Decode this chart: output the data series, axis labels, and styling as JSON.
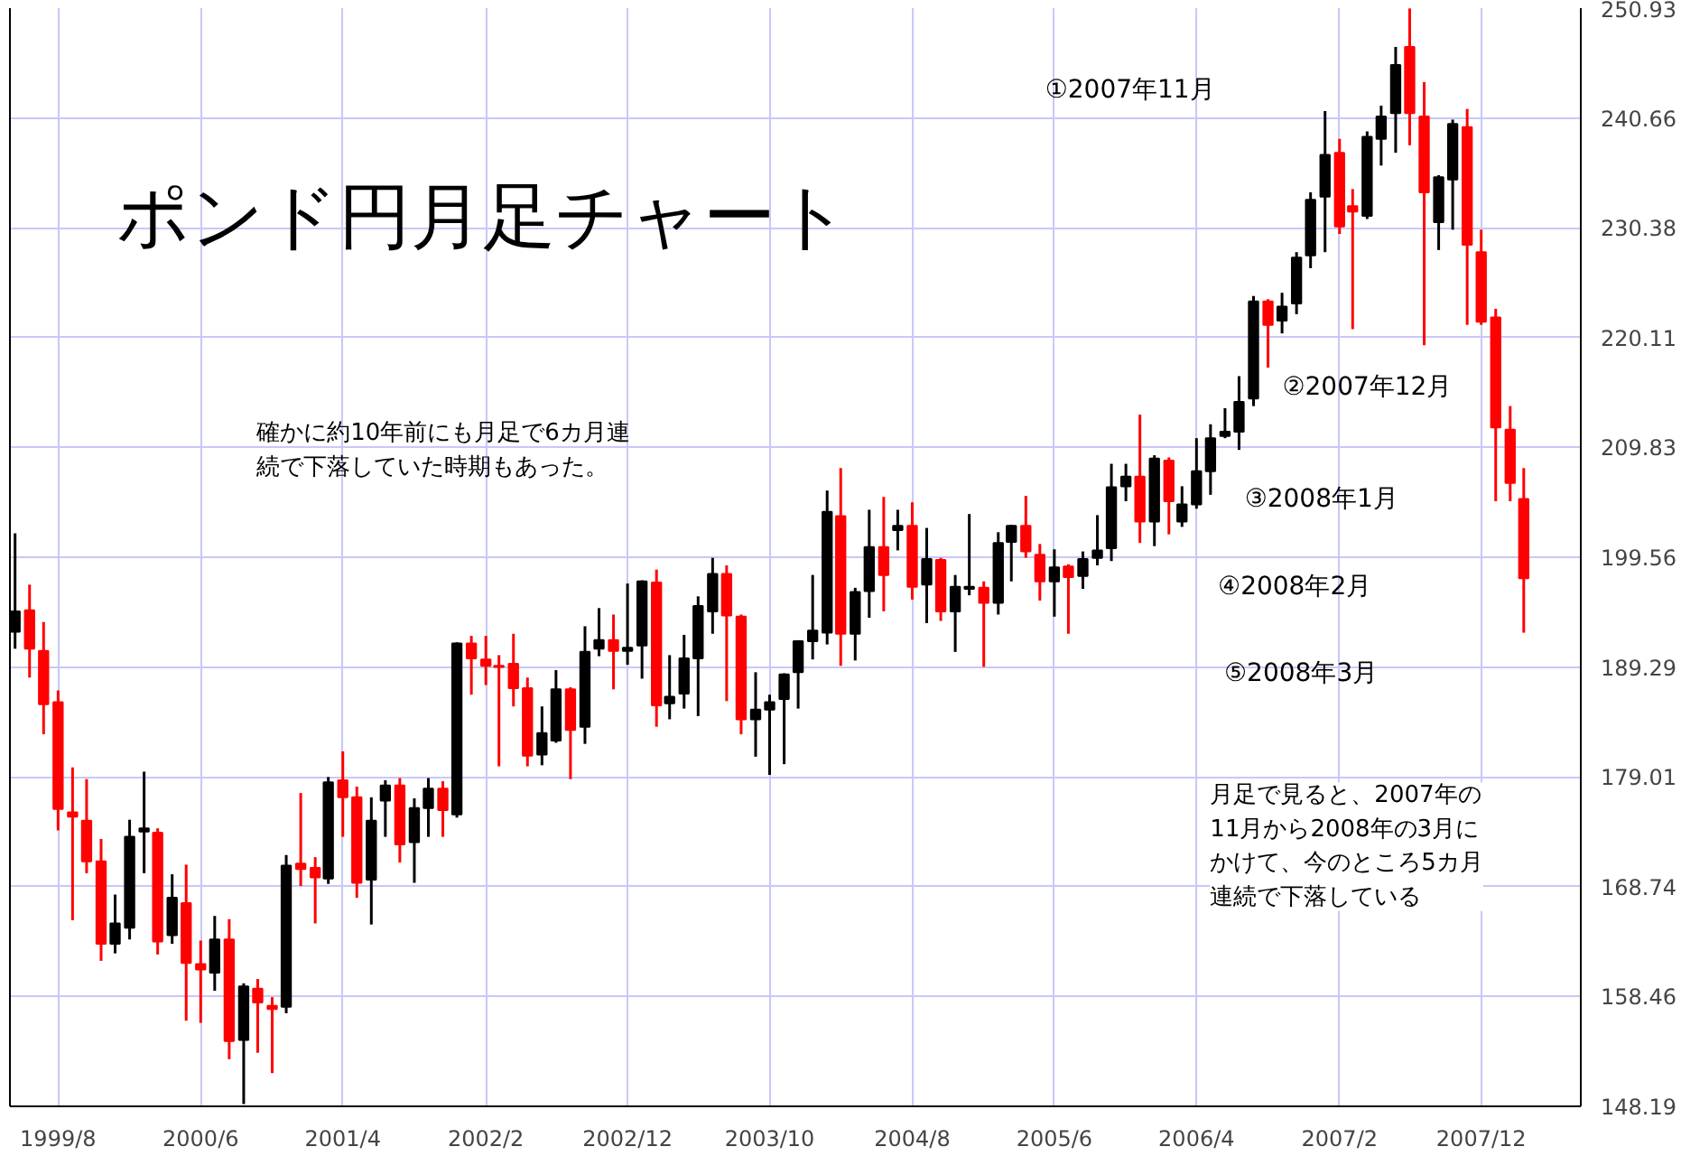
{
  "chart_data": {
    "type": "candlestick",
    "title": "ポンド円月足チャート",
    "x": [
      "1999-05",
      "1999-06",
      "1999-07",
      "1999-08",
      "1999-09",
      "1999-10",
      "1999-11",
      "1999-12",
      "2000-01",
      "2000-02",
      "2000-03",
      "2000-04",
      "2000-05",
      "2000-06",
      "2000-07",
      "2000-08",
      "2000-09",
      "2000-10",
      "2000-11",
      "2000-12",
      "2001-01",
      "2001-02",
      "2001-03",
      "2001-04",
      "2001-05",
      "2001-06",
      "2001-07",
      "2001-08",
      "2001-09",
      "2001-10",
      "2001-11",
      "2001-12",
      "2002-01",
      "2002-02",
      "2002-03",
      "2002-04",
      "2002-05",
      "2002-06",
      "2002-07",
      "2002-08",
      "2002-09",
      "2002-10",
      "2002-11",
      "2002-12",
      "2003-01",
      "2003-02",
      "2003-03",
      "2003-04",
      "2003-05",
      "2003-06",
      "2003-07",
      "2003-08",
      "2003-09",
      "2003-10",
      "2003-11",
      "2003-12",
      "2004-01",
      "2004-02",
      "2004-03",
      "2004-04",
      "2004-05",
      "2004-06",
      "2004-07",
      "2004-08",
      "2004-09",
      "2004-10",
      "2004-11",
      "2004-12",
      "2005-01",
      "2005-02",
      "2005-03",
      "2005-04",
      "2005-05",
      "2005-06",
      "2005-07",
      "2005-08",
      "2005-09",
      "2005-10",
      "2005-11",
      "2005-12",
      "2006-01",
      "2006-02",
      "2006-03",
      "2006-04",
      "2006-05",
      "2006-06",
      "2006-07",
      "2006-08",
      "2006-09",
      "2006-10",
      "2006-11",
      "2006-12",
      "2007-01",
      "2007-02",
      "2007-03",
      "2007-04",
      "2007-05",
      "2007-06",
      "2007-07",
      "2007-08",
      "2007-09",
      "2007-10",
      "2007-11",
      "2007-12",
      "2008-01",
      "2008-02",
      "2008-03"
    ],
    "ohlc": [
      [
        192.6,
        201.8,
        191.0,
        194.5
      ],
      [
        194.6,
        197.0,
        188.3,
        191.0
      ],
      [
        190.8,
        193.5,
        183.0,
        185.8
      ],
      [
        186.0,
        187.1,
        174.0,
        176.0
      ],
      [
        175.7,
        179.9,
        165.6,
        175.3
      ],
      [
        174.9,
        178.8,
        170.0,
        171.1
      ],
      [
        171.1,
        173.2,
        161.8,
        163.4
      ],
      [
        163.4,
        168.0,
        162.5,
        165.3
      ],
      [
        164.9,
        175.0,
        163.8,
        173.4
      ],
      [
        173.9,
        179.5,
        170.0,
        174.2
      ],
      [
        173.8,
        174.2,
        162.4,
        163.6
      ],
      [
        164.2,
        169.9,
        163.4,
        167.7
      ],
      [
        167.2,
        170.8,
        156.2,
        161.6
      ],
      [
        161.5,
        163.7,
        156.0,
        161.0
      ],
      [
        160.7,
        166.0,
        159.0,
        163.8
      ],
      [
        163.8,
        165.7,
        152.6,
        154.3
      ],
      [
        154.4,
        159.7,
        148.4,
        159.4
      ],
      [
        159.2,
        160.1,
        153.2,
        157.9
      ],
      [
        157.6,
        158.4,
        151.3,
        157.3
      ],
      [
        157.5,
        171.7,
        156.9,
        170.7
      ],
      [
        170.9,
        177.5,
        168.8,
        170.4
      ],
      [
        170.5,
        171.5,
        165.3,
        169.6
      ],
      [
        169.5,
        179.0,
        169.0,
        178.5
      ],
      [
        178.7,
        181.4,
        173.4,
        177.1
      ],
      [
        177.1,
        178.1,
        167.7,
        169.1
      ],
      [
        169.4,
        177.1,
        165.2,
        174.9
      ],
      [
        176.8,
        178.7,
        173.4,
        178.2
      ],
      [
        178.2,
        178.9,
        171.0,
        172.7
      ],
      [
        172.9,
        177.0,
        169.1,
        176.1
      ],
      [
        176.1,
        178.9,
        173.4,
        177.9
      ],
      [
        177.9,
        178.6,
        173.4,
        175.9
      ],
      [
        175.5,
        191.6,
        175.2,
        191.5
      ],
      [
        191.5,
        192.2,
        186.7,
        190.1
      ],
      [
        190.0,
        192.2,
        187.6,
        189.4
      ],
      [
        189.4,
        190.4,
        180.0,
        189.3
      ],
      [
        189.6,
        192.4,
        185.6,
        187.3
      ],
      [
        187.3,
        188.3,
        180.0,
        181.0
      ],
      [
        181.1,
        185.6,
        180.1,
        183.1
      ],
      [
        182.4,
        189.0,
        182.2,
        187.2
      ],
      [
        187.2,
        187.4,
        178.8,
        183.4
      ],
      [
        183.7,
        193.1,
        182.1,
        190.7
      ],
      [
        191.0,
        194.8,
        190.3,
        191.8
      ],
      [
        191.8,
        194.2,
        187.2,
        190.8
      ],
      [
        190.8,
        197.1,
        189.5,
        191.1
      ],
      [
        191.3,
        197.4,
        188.2,
        197.3
      ],
      [
        197.2,
        198.4,
        183.7,
        185.7
      ],
      [
        185.9,
        190.4,
        184.4,
        186.5
      ],
      [
        186.8,
        192.3,
        185.4,
        190.1
      ],
      [
        190.1,
        195.9,
        184.7,
        195.0
      ],
      [
        194.5,
        199.5,
        192.4,
        198.0
      ],
      [
        198.0,
        198.8,
        186.1,
        194.1
      ],
      [
        194.0,
        194.2,
        183.0,
        184.4
      ],
      [
        184.4,
        188.8,
        180.9,
        185.3
      ],
      [
        185.3,
        186.7,
        179.2,
        186.0
      ],
      [
        186.3,
        188.7,
        180.2,
        188.6
      ],
      [
        188.8,
        191.8,
        185.4,
        191.7
      ],
      [
        191.7,
        197.9,
        190.0,
        192.7
      ],
      [
        192.5,
        205.8,
        191.4,
        203.8
      ],
      [
        203.4,
        207.9,
        189.4,
        192.4
      ],
      [
        192.4,
        196.7,
        189.9,
        196.3
      ],
      [
        196.4,
        204.0,
        193.9,
        200.5
      ],
      [
        200.5,
        205.2,
        194.5,
        197.9
      ],
      [
        202.1,
        204.0,
        200.2,
        202.5
      ],
      [
        202.5,
        204.7,
        195.6,
        196.8
      ],
      [
        197.0,
        202.3,
        193.4,
        199.4
      ],
      [
        199.3,
        199.5,
        193.6,
        194.5
      ],
      [
        194.5,
        197.9,
        190.7,
        196.8
      ],
      [
        196.6,
        203.6,
        196.0,
        196.8
      ],
      [
        196.7,
        197.3,
        189.3,
        195.3
      ],
      [
        195.3,
        201.9,
        194.2,
        200.9
      ],
      [
        201.0,
        202.6,
        197.3,
        202.5
      ],
      [
        202.5,
        205.3,
        199.5,
        200.1
      ],
      [
        199.8,
        200.8,
        195.5,
        197.3
      ],
      [
        197.3,
        200.3,
        194.0,
        198.6
      ],
      [
        198.7,
        198.9,
        192.4,
        197.7
      ],
      [
        197.8,
        200.1,
        196.6,
        199.4
      ],
      [
        199.5,
        203.5,
        198.8,
        200.2
      ],
      [
        200.4,
        208.3,
        199.2,
        206.1
      ],
      [
        206.2,
        208.3,
        204.8,
        207.1
      ],
      [
        207.1,
        212.9,
        200.9,
        202.9
      ],
      [
        202.9,
        209.1,
        200.6,
        208.8
      ],
      [
        208.6,
        208.9,
        201.7,
        204.8
      ],
      [
        202.9,
        206.2,
        202.4,
        204.5
      ],
      [
        204.5,
        210.7,
        204.1,
        207.6
      ],
      [
        207.6,
        212.0,
        205.4,
        210.7
      ],
      [
        210.9,
        213.5,
        210.7,
        211.3
      ],
      [
        211.3,
        216.5,
        209.6,
        214.1
      ],
      [
        214.4,
        224.0,
        213.7,
        223.5
      ],
      [
        223.5,
        223.7,
        217.3,
        221.3
      ],
      [
        221.7,
        224.3,
        220.5,
        223.0
      ],
      [
        223.3,
        228.1,
        222.3,
        227.6
      ],
      [
        227.8,
        233.7,
        226.6,
        233.0
      ],
      [
        233.3,
        241.3,
        228.1,
        237.2
      ],
      [
        237.4,
        238.7,
        229.8,
        230.5
      ],
      [
        232.4,
        234.0,
        220.9,
        231.9
      ],
      [
        231.5,
        239.4,
        231.2,
        238.9
      ],
      [
        238.7,
        241.8,
        236.2,
        240.8
      ],
      [
        241.1,
        247.3,
        237.4,
        245.6
      ],
      [
        247.3,
        250.9,
        238.1,
        241.1
      ],
      [
        240.8,
        244.0,
        219.4,
        233.7
      ],
      [
        230.9,
        235.3,
        228.3,
        235.1
      ],
      [
        234.9,
        240.5,
        230.2,
        240.1
      ],
      [
        239.8,
        241.5,
        221.3,
        228.8
      ],
      [
        228.1,
        230.2,
        221.3,
        221.6
      ],
      [
        222.0,
        222.8,
        204.8,
        211.7
      ],
      [
        211.5,
        213.7,
        204.8,
        206.5
      ],
      [
        205.0,
        207.9,
        192.5,
        197.6
      ]
    ],
    "colors": [
      "#000000",
      "#ff0000",
      "#ff0000",
      "#ff0000",
      "#ff0000",
      "#ff0000",
      "#ff0000",
      "#000000",
      "#000000",
      "#000000",
      "#ff0000",
      "#000000",
      "#ff0000",
      "#ff0000",
      "#000000",
      "#ff0000",
      "#000000",
      "#ff0000",
      "#ff0000",
      "#000000",
      "#ff0000",
      "#ff0000",
      "#000000",
      "#ff0000",
      "#ff0000",
      "#000000",
      "#000000",
      "#ff0000",
      "#000000",
      "#000000",
      "#ff0000",
      "#000000",
      "#ff0000",
      "#ff0000",
      "#ff0000",
      "#ff0000",
      "#ff0000",
      "#000000",
      "#000000",
      "#ff0000",
      "#000000",
      "#000000",
      "#ff0000",
      "#000000",
      "#000000",
      "#ff0000",
      "#000000",
      "#000000",
      "#000000",
      "#000000",
      "#ff0000",
      "#ff0000",
      "#000000",
      "#000000",
      "#000000",
      "#000000",
      "#000000",
      "#000000",
      "#ff0000",
      "#000000",
      "#000000",
      "#ff0000",
      "#000000",
      "#ff0000",
      "#000000",
      "#ff0000",
      "#000000",
      "#000000",
      "#ff0000",
      "#000000",
      "#000000",
      "#ff0000",
      "#ff0000",
      "#000000",
      "#ff0000",
      "#000000",
      "#000000",
      "#000000",
      "#000000",
      "#ff0000",
      "#000000",
      "#ff0000",
      "#000000",
      "#000000",
      "#000000",
      "#000000",
      "#000000",
      "#000000",
      "#ff0000",
      "#000000",
      "#000000",
      "#000000",
      "#000000",
      "#ff0000",
      "#ff0000",
      "#000000",
      "#000000",
      "#000000",
      "#ff0000",
      "#ff0000",
      "#000000",
      "#000000",
      "#ff0000",
      "#ff0000",
      "#ff0000",
      "#ff0000",
      "#ff0000"
    ],
    "xlim": [
      "1999-04-20",
      "2008-07-01"
    ],
    "xticks": [
      {
        "value": "1999-08",
        "label": "1999/8"
      },
      {
        "value": "2000-06",
        "label": "2000/6"
      },
      {
        "value": "2001-04",
        "label": "2001/4"
      },
      {
        "value": "2002-02",
        "label": "2002/2"
      },
      {
        "value": "2002-12",
        "label": "2002/12"
      },
      {
        "value": "2003-10",
        "label": "2003/10"
      },
      {
        "value": "2004-08",
        "label": "2004/8"
      },
      {
        "value": "2005-06",
        "label": "2005/6"
      },
      {
        "value": "2006-04",
        "label": "2006/4"
      },
      {
        "value": "2007-02",
        "label": "2007/2"
      },
      {
        "value": "2007-12",
        "label": "2007/12"
      }
    ],
    "ylim": [
      148.19,
      250.93
    ],
    "yticks": [
      148.19,
      158.46,
      168.74,
      179.01,
      189.29,
      199.56,
      209.83,
      220.11,
      230.38,
      240.66,
      250.93
    ],
    "grid": true,
    "annotations": [
      "①2007年11月",
      "②2007年12月",
      "③2008年1月",
      "④2008年2月",
      "⑤2008年3月",
      "確かに約10年前にも月足で6カ月連続で下落していた時期もあった。",
      "月足で見ると、2007年の11月から2008年の3月にかけて、今のところ5カ月連続で下落している"
    ]
  }
}
